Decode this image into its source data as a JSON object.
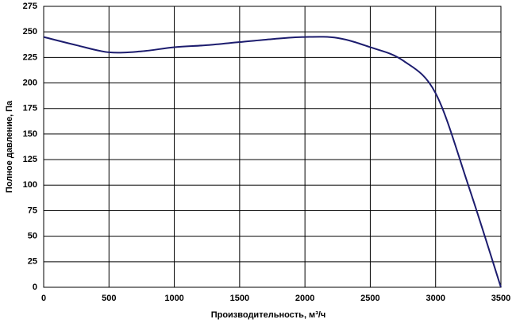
{
  "chart_data": {
    "type": "line",
    "xlabel": "Производительность, м³/ч",
    "ylabel": "Полное  давление, Па",
    "x": [
      0,
      250,
      500,
      750,
      1000,
      1250,
      1500,
      1750,
      2000,
      2250,
      2500,
      2750,
      3000,
      3250,
      3500
    ],
    "series": [
      {
        "color": "#1c1c6e",
        "values": [
          245,
          237,
          230,
          231,
          235,
          237,
          240,
          243,
          245,
          244,
          235,
          222,
          190,
          100,
          0
        ]
      }
    ],
    "xlim": [
      0,
      3500
    ],
    "xticks": [
      0,
      500,
      1000,
      1500,
      2000,
      2500,
      3000,
      3500
    ],
    "ylim": [
      0,
      275
    ],
    "yticks": [
      0,
      25,
      50,
      75,
      100,
      125,
      150,
      175,
      200,
      225,
      250,
      275
    ],
    "grid": true
  }
}
